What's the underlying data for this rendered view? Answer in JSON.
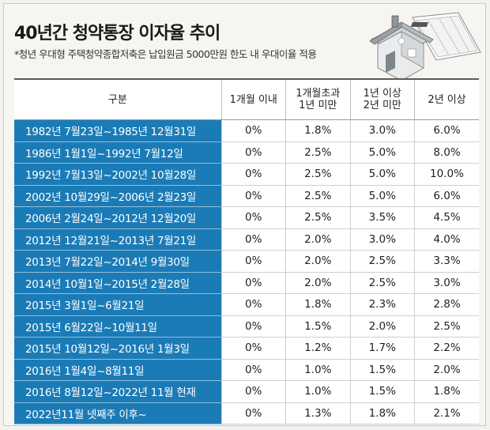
{
  "title": "40년간 청약통장 이자율 추이",
  "subtitle": "*청년 우대형 주택청약종합저축은 납입원금 5000만원 한도 내 우대이율 적용",
  "table": {
    "headers": [
      {
        "line1": "구분",
        "line2": ""
      },
      {
        "line1": "1개월 이내",
        "line2": ""
      },
      {
        "line1": "1개월초과",
        "line2": "1년 미만"
      },
      {
        "line1": "1년 이상",
        "line2": "2년 미만"
      },
      {
        "line1": "2년 이상",
        "line2": ""
      }
    ],
    "rows": [
      {
        "period": "1982년 7월23일~1985년 12월31일",
        "r1": "0%",
        "r2": "1.8%",
        "r3": "3.0%",
        "r4": "6.0%"
      },
      {
        "period": "1986년 1월1일~1992년 7월12일",
        "r1": "0%",
        "r2": "2.5%",
        "r3": "5.0%",
        "r4": "8.0%"
      },
      {
        "period": "1992년 7월13일~2002년 10월28일",
        "r1": "0%",
        "r2": "2.5%",
        "r3": "5.0%",
        "r4": "10.0%"
      },
      {
        "period": "2002년 10월29일~2006년 2월23일",
        "r1": "0%",
        "r2": "2.5%",
        "r3": "5.0%",
        "r4": "6.0%"
      },
      {
        "period": "2006년 2월24일~2012년 12월20일",
        "r1": "0%",
        "r2": "2.5%",
        "r3": "3.5%",
        "r4": "4.5%"
      },
      {
        "period": "2012년 12월21일~2013년 7월21일",
        "r1": "0%",
        "r2": "2.0%",
        "r3": "3.0%",
        "r4": "4.0%"
      },
      {
        "period": "2013년 7월22일~2014년 9월30일",
        "r1": "0%",
        "r2": "2.0%",
        "r3": "2.5%",
        "r4": "3.3%"
      },
      {
        "period": "2014년 10월1일~2015년 2월28일",
        "r1": "0%",
        "r2": "2.0%",
        "r3": "2.5%",
        "r4": "3.0%"
      },
      {
        "period": "2015년 3월1일~6월21일",
        "r1": "0%",
        "r2": "1.8%",
        "r3": "2.3%",
        "r4": "2.8%"
      },
      {
        "period": "2015년 6월22일~10월11일",
        "r1": "0%",
        "r2": "1.5%",
        "r3": "2.0%",
        "r4": "2.5%"
      },
      {
        "period": "2015년 10월12일~2016년 1월3일",
        "r1": "0%",
        "r2": "1.2%",
        "r3": "1.7%",
        "r4": "2.2%"
      },
      {
        "period": "2016년 1월4일~8월11일",
        "r1": "0%",
        "r2": "1.0%",
        "r3": "1.5%",
        "r4": "2.0%"
      },
      {
        "period": "2016년 8월12일~2022년 11월 현재",
        "r1": "0%",
        "r2": "1.0%",
        "r3": "1.5%",
        "r4": "1.8%"
      },
      {
        "period": "2022년11월 넷째주 이후~",
        "r1": "0%",
        "r2": "1.3%",
        "r3": "1.8%",
        "r4": "2.1%"
      }
    ]
  },
  "colors": {
    "period_bg": "#1b7bb6",
    "period_text": "#ffffff",
    "background": "#f6f5f1"
  },
  "icons": [
    "house-illustration",
    "passbook-illustration"
  ]
}
